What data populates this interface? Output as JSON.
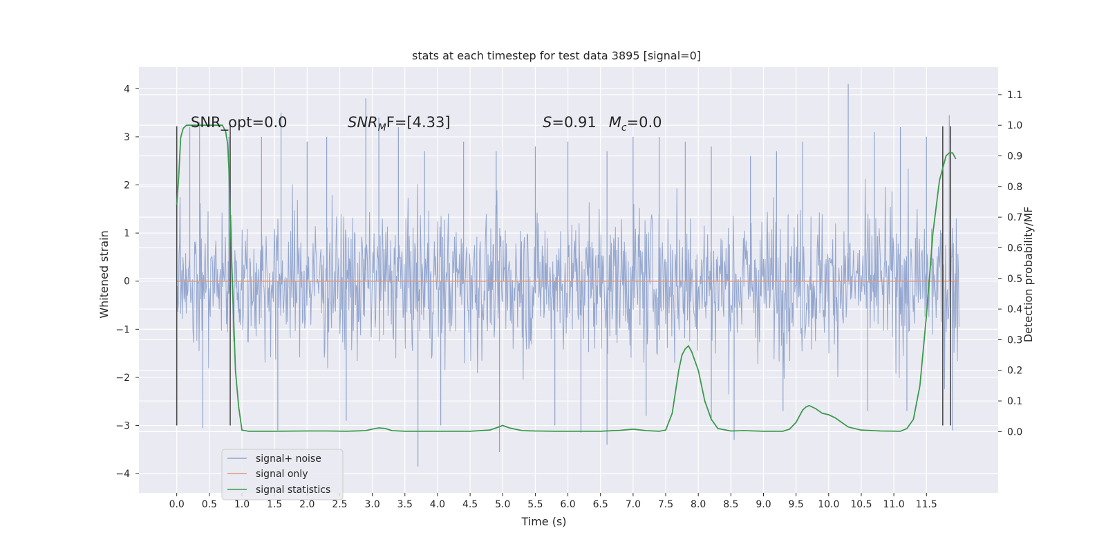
{
  "chart_data": {
    "type": "line",
    "title": "stats at each timestep for test data 3895 [signal=0]",
    "xlabel": "Time (s)",
    "ylabel": "Whitened strain",
    "y2label": "Detection probability/MF",
    "xlim": [
      -0.58,
      12.6
    ],
    "ylim": [
      -4.4,
      4.45
    ],
    "y2lim": [
      -0.2,
      1.19
    ],
    "xticks": [
      "0.0",
      "0.5",
      "1.0",
      "1.5",
      "2.0",
      "2.5",
      "3.0",
      "3.5",
      "4.0",
      "4.5",
      "5.0",
      "5.5",
      "6.0",
      "6.5",
      "7.0",
      "7.5",
      "8.0",
      "8.5",
      "9.0",
      "9.5",
      "10.0",
      "10.5",
      "11.0",
      "11.5"
    ],
    "yticks": [
      4,
      3,
      2,
      1,
      0,
      -1,
      -2,
      -3,
      -4
    ],
    "y2ticks": [
      "1.1",
      "1.0",
      "0.9",
      "0.8",
      "0.7",
      "0.6",
      "0.5",
      "0.4",
      "0.3",
      "0.2",
      "0.1",
      "0.0"
    ],
    "grid": true,
    "legend_position": "lower-left",
    "colors": {
      "background": "#eaeaf2",
      "grid": "#ffffff",
      "noise": "#8fa3cc",
      "signal_only": "#e29a7e",
      "statistics": "#3a9a4a",
      "markers": "#4a4a4a"
    },
    "series": [
      {
        "name": "signal+ noise",
        "axis": "left",
        "description_range": [
          -3.85,
          4.1
        ],
        "peaks": [
          [
            0.05,
            1.6
          ],
          [
            0.2,
            3.2
          ],
          [
            0.35,
            3.3
          ],
          [
            0.8,
            3.0
          ],
          [
            1.3,
            3.0
          ],
          [
            1.6,
            3.5
          ],
          [
            2.0,
            2.9
          ],
          [
            2.3,
            3.0
          ],
          [
            2.9,
            3.8
          ],
          [
            3.1,
            3.4
          ],
          [
            3.4,
            3.2
          ],
          [
            3.8,
            2.7
          ],
          [
            4.4,
            2.9
          ],
          [
            4.9,
            2.7
          ],
          [
            5.5,
            2.8
          ],
          [
            6.0,
            2.9
          ],
          [
            6.6,
            2.7
          ],
          [
            7.0,
            3.0
          ],
          [
            7.4,
            3.0
          ],
          [
            7.8,
            2.9
          ],
          [
            8.2,
            2.8
          ],
          [
            8.8,
            2.6
          ],
          [
            9.2,
            2.7
          ],
          [
            9.6,
            2.9
          ],
          [
            10.3,
            4.1
          ],
          [
            10.7,
            3.1
          ],
          [
            11.1,
            3.2
          ],
          [
            11.5,
            3.0
          ],
          [
            11.85,
            3.45
          ]
        ],
        "troughs": [
          [
            0.4,
            -3.05
          ],
          [
            1.55,
            -3.1
          ],
          [
            2.6,
            -2.9
          ],
          [
            3.7,
            -3.85
          ],
          [
            4.05,
            -3.0
          ],
          [
            4.95,
            -3.55
          ],
          [
            5.8,
            -3.0
          ],
          [
            6.2,
            -3.15
          ],
          [
            6.6,
            -3.4
          ],
          [
            7.2,
            -2.8
          ],
          [
            8.2,
            -2.9
          ],
          [
            8.55,
            -3.3
          ],
          [
            9.3,
            -2.7
          ],
          [
            10.6,
            -2.7
          ],
          [
            11.2,
            -2.7
          ],
          [
            11.9,
            -3.1
          ]
        ]
      },
      {
        "name": "signal only",
        "axis": "left",
        "x": [
          0.0,
          12.0
        ],
        "y": [
          0.0,
          0.0
        ]
      },
      {
        "name": "signal statistics",
        "axis": "right",
        "x": [
          0.0,
          0.03,
          0.06,
          0.1,
          0.15,
          0.2,
          0.3,
          0.4,
          0.5,
          0.6,
          0.7,
          0.75,
          0.78,
          0.8,
          0.82,
          0.86,
          0.9,
          0.95,
          1.0,
          1.1,
          1.2,
          1.5,
          2.0,
          2.3,
          2.6,
          2.9,
          3.0,
          3.1,
          3.2,
          3.3,
          3.5,
          4.0,
          4.5,
          4.8,
          4.9,
          5.0,
          5.1,
          5.3,
          5.5,
          5.8,
          6.2,
          6.5,
          6.8,
          7.0,
          7.2,
          7.4,
          7.5,
          7.6,
          7.7,
          7.75,
          7.8,
          7.85,
          7.9,
          8.0,
          8.1,
          8.2,
          8.3,
          8.5,
          8.7,
          9.0,
          9.3,
          9.4,
          9.5,
          9.6,
          9.65,
          9.7,
          9.8,
          9.9,
          10.0,
          10.1,
          10.2,
          10.3,
          10.5,
          10.8,
          11.1,
          11.2,
          11.3,
          11.4,
          11.5,
          11.6,
          11.7,
          11.8,
          11.85,
          11.9,
          11.95
        ],
        "y": [
          0.74,
          0.83,
          0.96,
          0.99,
          1.0,
          1.0,
          1.0,
          1.0,
          1.0,
          1.0,
          1.0,
          0.98,
          0.94,
          0.86,
          0.7,
          0.45,
          0.2,
          0.08,
          0.005,
          0.001,
          0.001,
          0.001,
          0.002,
          0.002,
          0.001,
          0.003,
          0.008,
          0.012,
          0.01,
          0.003,
          0.001,
          0.001,
          0.001,
          0.005,
          0.012,
          0.02,
          0.012,
          0.003,
          0.002,
          0.001,
          0.001,
          0.001,
          0.004,
          0.008,
          0.003,
          0.001,
          0.005,
          0.06,
          0.2,
          0.25,
          0.27,
          0.28,
          0.26,
          0.2,
          0.1,
          0.04,
          0.01,
          0.002,
          0.003,
          0.001,
          0.001,
          0.008,
          0.03,
          0.07,
          0.08,
          0.085,
          0.075,
          0.06,
          0.055,
          0.045,
          0.03,
          0.015,
          0.005,
          0.002,
          0.001,
          0.01,
          0.04,
          0.15,
          0.38,
          0.65,
          0.82,
          0.9,
          0.91,
          0.91,
          0.89
        ]
      }
    ],
    "vlines": [
      {
        "x": 0.0,
        "y": [
          -3.0,
          3.22
        ]
      },
      {
        "x": 0.82,
        "y": [
          -3.0,
          3.22
        ]
      },
      {
        "x": 11.75,
        "y": [
          -3.0,
          3.22
        ]
      },
      {
        "x": 11.87,
        "y": [
          -3.0,
          3.22
        ]
      }
    ],
    "annotations": {
      "snr_opt": "SNR_opt=0.0",
      "snr_mf_prefix": "SNR",
      "snr_mf_sub": "M",
      "snr_mf_rest": "F=[4.33]",
      "s_var": "S",
      "s_val": "=0.91",
      "mc_var": "M",
      "mc_sub": "c",
      "mc_val": "=0.0"
    }
  }
}
